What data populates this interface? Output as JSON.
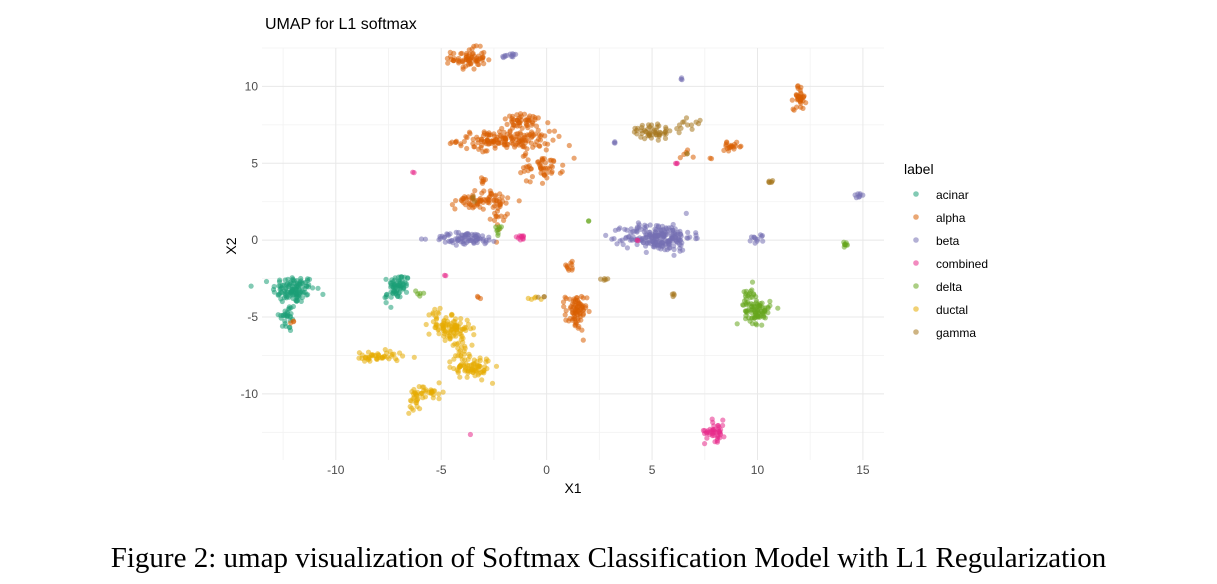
{
  "figure": {
    "caption": "Figure 2: umap visualization of Softmax Classification Model with L1 Regularization"
  },
  "chart_data": {
    "type": "scatter",
    "title": "UMAP for L1 softmax",
    "xlabel": "X1",
    "ylabel": "X2",
    "xlim": [
      -13.5,
      16
    ],
    "ylim": [
      -14.3,
      12.5
    ],
    "xticks": [
      -10,
      -5,
      0,
      5,
      10,
      15
    ],
    "yticks": [
      10,
      5,
      0,
      -5,
      -10
    ],
    "grid": true,
    "legend_title": "label",
    "legend_position": "right",
    "series": [
      {
        "name": "acinar",
        "color": "#1b9e77",
        "clusters": [
          {
            "x": -12.0,
            "y": -3.2,
            "sx": 0.5,
            "sy": 0.45,
            "n": 120
          },
          {
            "x": -12.3,
            "y": -5.0,
            "sx": 0.2,
            "sy": 0.5,
            "n": 30
          },
          {
            "x": -7.0,
            "y": -2.9,
            "sx": 0.25,
            "sy": 0.35,
            "n": 55
          },
          {
            "x": -7.3,
            "y": -3.6,
            "sx": 0.2,
            "sy": 0.2,
            "n": 15
          }
        ]
      },
      {
        "name": "alpha",
        "color": "#d95f02",
        "clusters": [
          {
            "x": -3.7,
            "y": 11.8,
            "sx": 0.4,
            "sy": 0.35,
            "n": 70
          },
          {
            "x": -2.0,
            "y": 6.5,
            "sx": 1.1,
            "sy": 0.3,
            "n": 160
          },
          {
            "x": -1.0,
            "y": 7.7,
            "sx": 0.6,
            "sy": 0.25,
            "n": 50
          },
          {
            "x": -0.2,
            "y": 4.8,
            "sx": 0.5,
            "sy": 0.4,
            "n": 50
          },
          {
            "x": -3.1,
            "y": 2.6,
            "sx": 0.6,
            "sy": 0.3,
            "n": 70
          },
          {
            "x": -2.3,
            "y": 1.8,
            "sx": 0.15,
            "sy": 0.5,
            "n": 20
          },
          {
            "x": 1.4,
            "y": -4.7,
            "sx": 0.25,
            "sy": 0.6,
            "n": 80
          },
          {
            "x": 1.1,
            "y": -1.7,
            "sx": 0.15,
            "sy": 0.15,
            "n": 10
          },
          {
            "x": 12.0,
            "y": 9.3,
            "sx": 0.15,
            "sy": 0.4,
            "n": 35
          },
          {
            "x": 8.8,
            "y": 6.1,
            "sx": 0.25,
            "sy": 0.12,
            "n": 20
          },
          {
            "x": 6.5,
            "y": 5.5,
            "sx": 0.2,
            "sy": 0.15,
            "n": 5
          },
          {
            "x": -3.1,
            "y": 3.8,
            "sx": 0.1,
            "sy": 0.2,
            "n": 6
          },
          {
            "x": -12.0,
            "y": -5.4,
            "sx": 0.1,
            "sy": 0.1,
            "n": 3
          },
          {
            "x": -3.2,
            "y": -3.8,
            "sx": 0.1,
            "sy": 0.1,
            "n": 3
          },
          {
            "x": -1.0,
            "y": 3.8,
            "sx": 0.1,
            "sy": 0.1,
            "n": 2
          },
          {
            "x": 7.8,
            "y": 5.3,
            "sx": 0.05,
            "sy": 0.05,
            "n": 2
          }
        ]
      },
      {
        "name": "beta",
        "color": "#7570b3",
        "clusters": [
          {
            "x": 5.3,
            "y": 0.2,
            "sx": 0.8,
            "sy": 0.45,
            "n": 220
          },
          {
            "x": -3.8,
            "y": 0.1,
            "sx": 0.8,
            "sy": 0.2,
            "n": 80
          },
          {
            "x": -1.7,
            "y": 12.0,
            "sx": 0.25,
            "sy": 0.08,
            "n": 12
          },
          {
            "x": 10.0,
            "y": 0.1,
            "sx": 0.2,
            "sy": 0.15,
            "n": 12
          },
          {
            "x": 14.8,
            "y": 2.9,
            "sx": 0.12,
            "sy": 0.1,
            "n": 8
          },
          {
            "x": 6.4,
            "y": 10.5,
            "sx": 0.05,
            "sy": 0.05,
            "n": 3
          },
          {
            "x": 3.2,
            "y": 6.4,
            "sx": 0.05,
            "sy": 0.05,
            "n": 3
          }
        ]
      },
      {
        "name": "combined",
        "color": "#e7298a",
        "clusters": [
          {
            "x": 8.0,
            "y": -12.4,
            "sx": 0.25,
            "sy": 0.35,
            "n": 45
          },
          {
            "x": -1.3,
            "y": 0.2,
            "sx": 0.2,
            "sy": 0.08,
            "n": 10
          },
          {
            "x": -6.3,
            "y": 4.4,
            "sx": 0.03,
            "sy": 0.03,
            "n": 2
          },
          {
            "x": -4.8,
            "y": -2.3,
            "sx": 0.03,
            "sy": 0.03,
            "n": 2
          },
          {
            "x": 6.2,
            "y": 5.0,
            "sx": 0.05,
            "sy": 0.05,
            "n": 3
          },
          {
            "x": 4.3,
            "y": 0.0,
            "sx": 0.05,
            "sy": 0.05,
            "n": 2
          },
          {
            "x": -3.6,
            "y": -12.6,
            "sx": 0.02,
            "sy": 0.02,
            "n": 1
          }
        ]
      },
      {
        "name": "delta",
        "color": "#66a61e",
        "clusters": [
          {
            "x": 10.0,
            "y": -4.6,
            "sx": 0.3,
            "sy": 0.4,
            "n": 80
          },
          {
            "x": 9.6,
            "y": -3.5,
            "sx": 0.15,
            "sy": 0.3,
            "n": 20
          },
          {
            "x": 14.2,
            "y": -0.3,
            "sx": 0.1,
            "sy": 0.08,
            "n": 8
          },
          {
            "x": -2.3,
            "y": 0.6,
            "sx": 0.08,
            "sy": 0.2,
            "n": 8
          },
          {
            "x": 2.0,
            "y": 1.2,
            "sx": 0.03,
            "sy": 0.03,
            "n": 2
          },
          {
            "x": -6.2,
            "y": -3.5,
            "sx": 0.2,
            "sy": 0.2,
            "n": 5
          }
        ]
      },
      {
        "name": "ductal",
        "color": "#e6ab02",
        "clusters": [
          {
            "x": -4.6,
            "y": -5.7,
            "sx": 0.5,
            "sy": 0.35,
            "n": 90
          },
          {
            "x": -3.5,
            "y": -8.3,
            "sx": 0.45,
            "sy": 0.35,
            "n": 70
          },
          {
            "x": -4.0,
            "y": -7.0,
            "sx": 0.2,
            "sy": 0.5,
            "n": 30
          },
          {
            "x": -8.0,
            "y": -7.6,
            "sx": 0.6,
            "sy": 0.2,
            "n": 45
          },
          {
            "x": -5.7,
            "y": -9.9,
            "sx": 0.4,
            "sy": 0.25,
            "n": 35
          },
          {
            "x": -6.3,
            "y": -10.6,
            "sx": 0.15,
            "sy": 0.3,
            "n": 15
          },
          {
            "x": -5.3,
            "y": -4.8,
            "sx": 0.15,
            "sy": 0.2,
            "n": 8
          },
          {
            "x": -0.5,
            "y": -3.8,
            "sx": 0.2,
            "sy": 0.08,
            "n": 5
          }
        ]
      },
      {
        "name": "gamma",
        "color": "#a6761d",
        "clusters": [
          {
            "x": 5.0,
            "y": 7.0,
            "sx": 0.5,
            "sy": 0.2,
            "n": 45
          },
          {
            "x": 6.7,
            "y": 7.6,
            "sx": 0.3,
            "sy": 0.2,
            "n": 12
          },
          {
            "x": 5.0,
            "y": 7.5,
            "sx": 0.15,
            "sy": 0.1,
            "n": 6
          },
          {
            "x": 10.6,
            "y": 3.8,
            "sx": 0.1,
            "sy": 0.08,
            "n": 6
          },
          {
            "x": 2.8,
            "y": -2.5,
            "sx": 0.15,
            "sy": 0.05,
            "n": 5
          },
          {
            "x": 6.0,
            "y": -3.6,
            "sx": 0.05,
            "sy": 0.05,
            "n": 4
          },
          {
            "x": 6.7,
            "y": 5.6,
            "sx": 0.05,
            "sy": 0.05,
            "n": 2
          },
          {
            "x": -0.1,
            "y": -3.7,
            "sx": 0.1,
            "sy": 0.05,
            "n": 3
          },
          {
            "x": -3.5,
            "y": 2.7,
            "sx": 0.1,
            "sy": 0.1,
            "n": 3
          }
        ]
      }
    ]
  }
}
